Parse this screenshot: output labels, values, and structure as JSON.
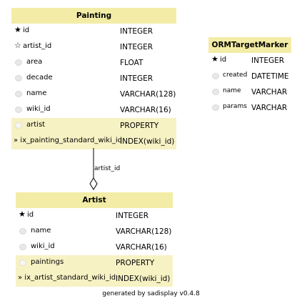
{
  "tables": {
    "painting": {
      "title": "Painting",
      "columns": [
        {
          "marker": "★",
          "name": "id",
          "type": "INTEGER"
        },
        {
          "marker": "☆",
          "name": "artist_id",
          "type": "INTEGER"
        },
        {
          "marker": "",
          "name": "area",
          "type": "FLOAT"
        },
        {
          "marker": "",
          "name": "decade",
          "type": "INTEGER"
        },
        {
          "marker": "",
          "name": "name",
          "type": "VARCHAR(128)"
        },
        {
          "marker": "",
          "name": "wiki_id",
          "type": "VARCHAR(16)"
        }
      ],
      "properties": [
        {
          "name": "artist",
          "type": "PROPERTY"
        }
      ],
      "indexes": [
        {
          "name": "» ix_painting_standard_wiki_id",
          "type": "INDEX(wiki_id)"
        }
      ]
    },
    "orm_target_marker": {
      "title": "ORMTargetMarker",
      "columns": [
        {
          "marker": "★",
          "name": "id",
          "type": "INTEGER"
        },
        {
          "marker": "",
          "name": "created",
          "type": "DATETIME"
        },
        {
          "marker": "",
          "name": "name",
          "type": "VARCHAR"
        },
        {
          "marker": "",
          "name": "params",
          "type": "VARCHAR"
        }
      ]
    },
    "artist": {
      "title": "Artist",
      "columns": [
        {
          "marker": "★",
          "name": "id",
          "type": "INTEGER"
        },
        {
          "marker": "",
          "name": "name",
          "type": "VARCHAR(128)"
        },
        {
          "marker": "",
          "name": "wiki_id",
          "type": "VARCHAR(16)"
        }
      ],
      "properties": [
        {
          "name": "paintings",
          "type": "PROPERTY"
        }
      ],
      "indexes": [
        {
          "name": "» ix_artist_standard_wiki_id",
          "type": "INDEX(wiki_id)"
        }
      ]
    }
  },
  "relationship": {
    "label": "artist_id"
  },
  "footer": {
    "text": "generated by sadisplay v0.4.8"
  }
}
